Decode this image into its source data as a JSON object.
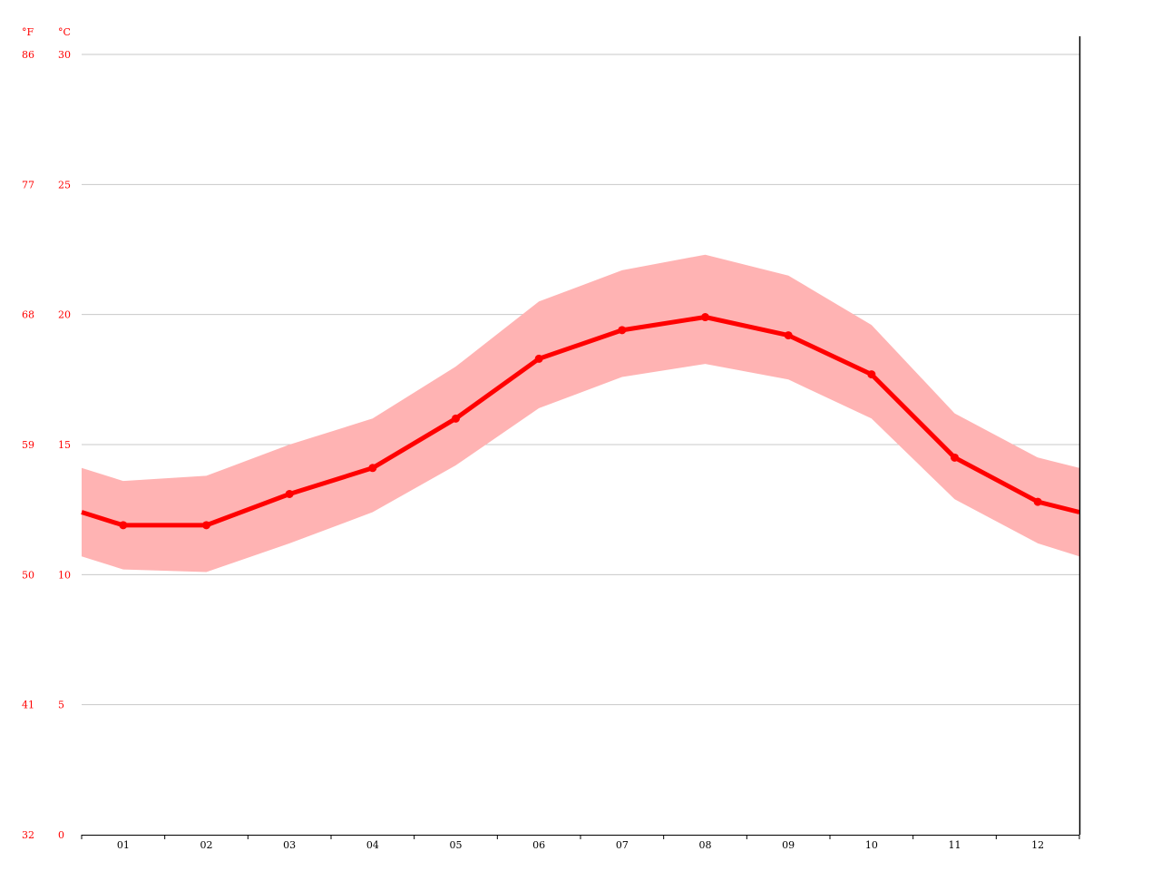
{
  "chart_data": {
    "type": "line",
    "title": "",
    "xlabel": "",
    "ylabel": "",
    "categories": [
      "01",
      "02",
      "03",
      "04",
      "05",
      "06",
      "07",
      "08",
      "09",
      "10",
      "11",
      "12"
    ],
    "y_units": {
      "left": "°F",
      "right": "°C"
    },
    "ylim_c": [
      0,
      30
    ],
    "yticks_c": [
      "0",
      "5",
      "10",
      "15",
      "20",
      "25",
      "30"
    ],
    "yticks_f": [
      "32",
      "41",
      "50",
      "59",
      "68",
      "77",
      "86"
    ],
    "grid": true,
    "series": [
      {
        "values": [
          11.9,
          11.9,
          13.1,
          14.1,
          16.0,
          18.3,
          19.4,
          19.9,
          19.2,
          17.7,
          14.5,
          12.8
        ],
        "high": [
          13.6,
          13.8,
          15.0,
          16.0,
          18.0,
          20.5,
          21.7,
          22.3,
          21.5,
          19.6,
          16.2,
          14.5
        ],
        "low": [
          10.2,
          10.1,
          11.2,
          12.4,
          14.2,
          16.4,
          17.6,
          18.1,
          17.5,
          16.0,
          12.9,
          11.2
        ],
        "edge_start": {
          "value": 12.4,
          "high": 14.1,
          "low": 10.7
        },
        "edge_end": {
          "value": 12.4,
          "high": 14.1,
          "low": 10.7
        }
      }
    ],
    "colors": {
      "line": "#ff0000",
      "band": "#ffb3b3",
      "grid": "#c8c8c8",
      "axis": "#000000",
      "ytick": "#ff0000"
    }
  }
}
